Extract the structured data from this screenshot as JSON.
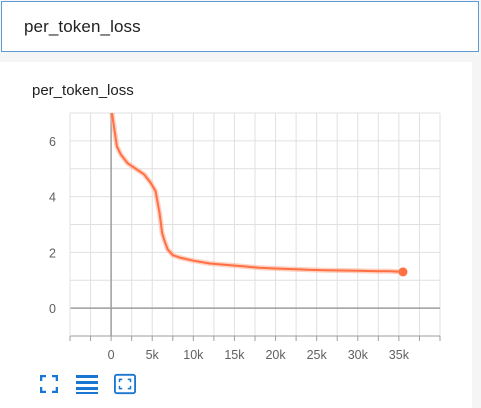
{
  "search": {
    "value": "per_token_loss"
  },
  "card": {
    "title": "per_token_loss"
  },
  "colors": {
    "line": "#ff7043",
    "line_light": "#ffab91",
    "grid": "#e0e0e0",
    "axis": "#9e9e9e",
    "tick_text": "#616161",
    "icon": "#1976d2",
    "search_border": "#5b9bd5"
  },
  "toolbar": {
    "icons": [
      "fullscreen-icon",
      "toggle-y-log-icon",
      "fit-domain-icon"
    ]
  },
  "chart_data": {
    "type": "line",
    "title": "",
    "xlabel": "",
    "ylabel": "",
    "xlim": [
      -5000,
      40000
    ],
    "ylim": [
      -1,
      7
    ],
    "x_ticks": [
      0,
      5000,
      10000,
      15000,
      20000,
      25000,
      30000,
      35000
    ],
    "x_tick_labels": [
      "0",
      "5k",
      "10k",
      "15k",
      "20k",
      "25k",
      "30k",
      "35k"
    ],
    "y_ticks": [
      0,
      2,
      4,
      6
    ],
    "y_tick_labels": [
      "0",
      "2",
      "4",
      "6"
    ],
    "grid": true,
    "series": [
      {
        "x": [
          0,
          300,
          700,
          1200,
          2000,
          3000,
          4000,
          4800,
          5400,
          5900,
          6200,
          6500,
          6900,
          7500,
          8500,
          10000,
          12000,
          14000,
          16000,
          18000,
          20000,
          22000,
          24000,
          26000,
          28000,
          30000,
          32000,
          34000,
          35500
        ],
        "values": [
          7.2,
          6.6,
          5.8,
          5.5,
          5.2,
          5.0,
          4.8,
          4.5,
          4.2,
          3.4,
          2.7,
          2.4,
          2.1,
          1.9,
          1.8,
          1.7,
          1.6,
          1.55,
          1.5,
          1.45,
          1.42,
          1.4,
          1.38,
          1.36,
          1.35,
          1.34,
          1.33,
          1.32,
          1.3
        ]
      }
    ]
  }
}
